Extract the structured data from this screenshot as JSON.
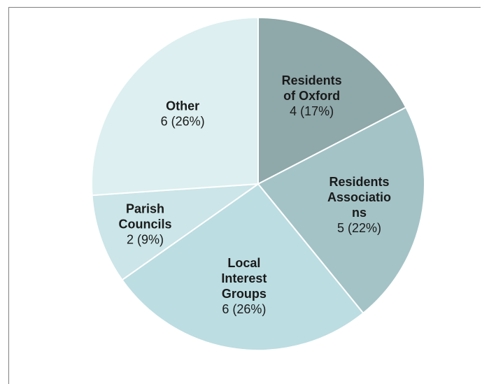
{
  "chart_data": {
    "type": "pie",
    "slices": [
      {
        "label_lines": [
          "Residents",
          "of Oxford"
        ],
        "value": 4,
        "value_text": "4 (17%)",
        "color": "#8fa8aa"
      },
      {
        "label_lines": [
          "Residents",
          "Associatio",
          "ns"
        ],
        "value": 5,
        "value_text": "5 (22%)",
        "color": "#a4c3c6"
      },
      {
        "label_lines": [
          "Local",
          "Interest",
          "Groups"
        ],
        "value": 6,
        "value_text": "6 (26%)",
        "color": "#bcdde2"
      },
      {
        "label_lines": [
          "Parish",
          "Councils"
        ],
        "value": 2,
        "value_text": "2 (9%)",
        "color": "#cbe5e8"
      },
      {
        "label_lines": [
          "Other"
        ],
        "value": 6,
        "value_text": "6 (26%)",
        "color": "#ddeff0"
      }
    ]
  }
}
